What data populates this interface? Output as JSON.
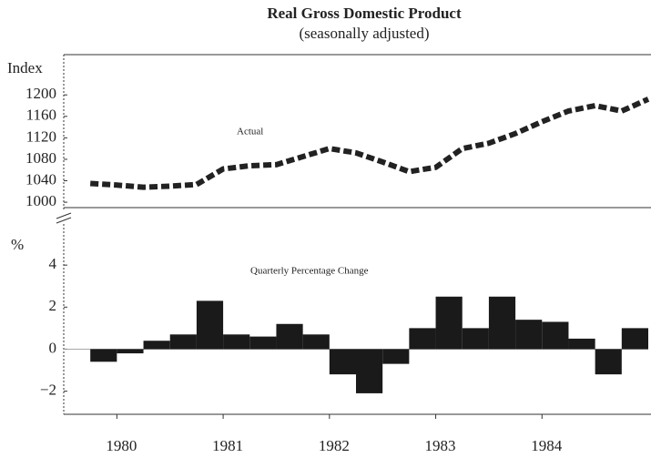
{
  "chart_data": [
    {
      "type": "line",
      "title": "Real Gross Domestic Product",
      "subtitle": "(seasonally adjusted)",
      "ylabel": "Index",
      "annotation": "Actual",
      "x": [
        1979.75,
        1980.0,
        1980.25,
        1980.5,
        1980.75,
        1981.0,
        1981.25,
        1981.5,
        1981.75,
        1982.0,
        1982.25,
        1982.5,
        1982.75,
        1983.0,
        1983.25,
        1983.5,
        1983.75,
        1984.0,
        1984.25,
        1984.5,
        1984.75,
        1985.0
      ],
      "values": [
        1035,
        1032,
        1028,
        1030,
        1033,
        1062,
        1068,
        1070,
        1085,
        1100,
        1092,
        1075,
        1057,
        1065,
        1100,
        1110,
        1128,
        1150,
        1170,
        1180,
        1170,
        1192
      ],
      "color": "#222222",
      "xlim": [
        1979.5,
        1985.0
      ],
      "ylim": [
        990,
        1275
      ],
      "yticks": [
        1000,
        1040,
        1080,
        1120,
        1160,
        1200
      ]
    },
    {
      "type": "histogram",
      "ylabel": "%",
      "annotation": "Quarterly Percentage Change",
      "bins": [
        1979.75,
        1980.0,
        1980.25,
        1980.5,
        1980.75,
        1981.0,
        1981.25,
        1981.5,
        1981.75,
        1982.0,
        1982.25,
        1982.5,
        1982.75,
        1983.0,
        1983.25,
        1983.5,
        1983.75,
        1984.0,
        1984.25,
        1984.5,
        1984.75,
        1985.0
      ],
      "values": [
        -0.6,
        -0.2,
        0.4,
        0.7,
        2.3,
        0.7,
        0.6,
        1.2,
        0.7,
        -1.2,
        -2.1,
        -0.7,
        1.0,
        2.5,
        1.0,
        2.5,
        1.4,
        1.3,
        0.5,
        -1.2,
        1.0
      ],
      "color": "#1a1a1a",
      "xlim": [
        1979.5,
        1985.0
      ],
      "ylim": [
        -3.1,
        6
      ],
      "yticks": [
        {
          "value": -2,
          "label": "−2"
        },
        0,
        2,
        4
      ],
      "xticks": [
        1980,
        1981,
        1982,
        1983,
        1984
      ]
    }
  ]
}
